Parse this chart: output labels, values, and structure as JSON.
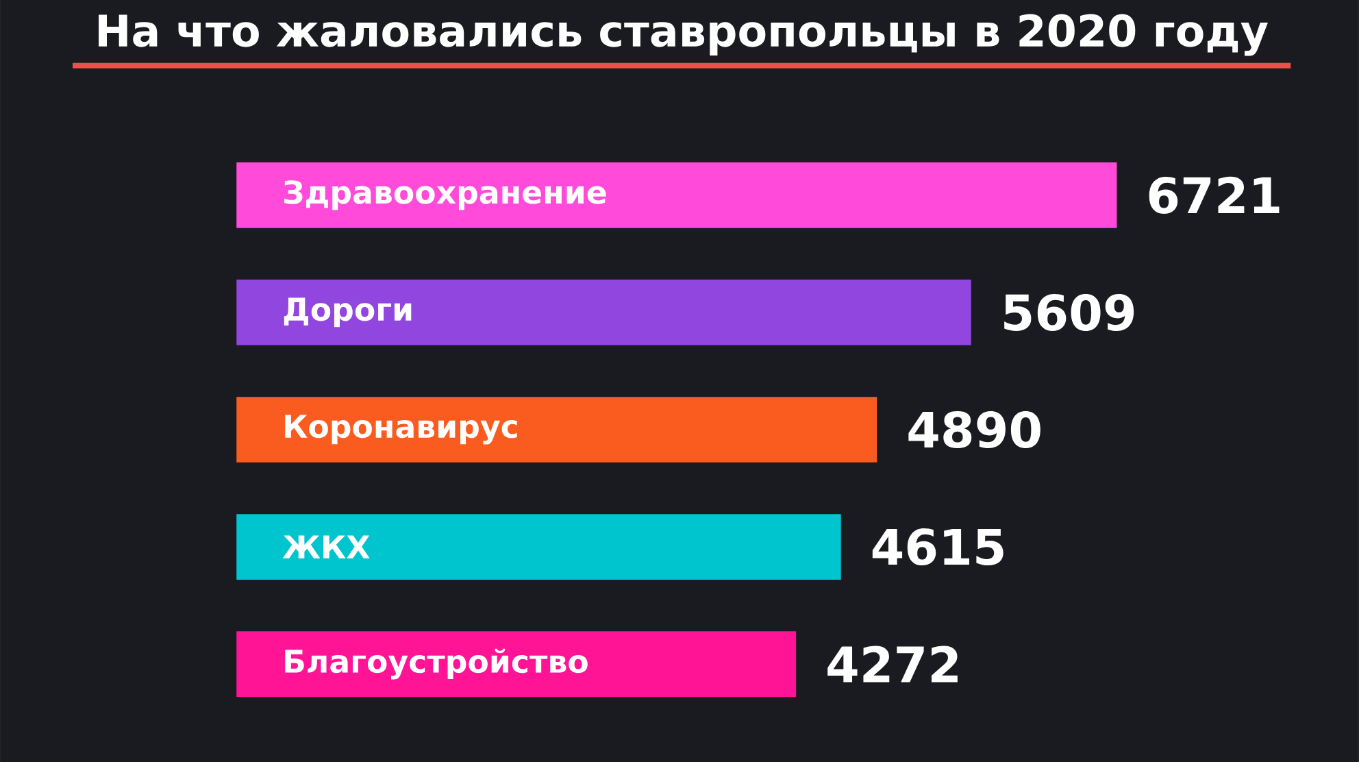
{
  "chart_data": {
    "type": "bar",
    "orientation": "horizontal",
    "title": "На что жаловались ставропольцы в 2020 году",
    "categories": [
      "Здравоохранение",
      "Дороги",
      "Коронавирус",
      "ЖКХ",
      "Благоустройство"
    ],
    "values": [
      6721,
      5609,
      4890,
      4615,
      4272
    ],
    "colors": [
      "#ff4ada",
      "#9146e0",
      "#fa5c1f",
      "#00c5ce",
      "#ff1496"
    ],
    "data_labels": true,
    "tick_labels": "y"
  }
}
